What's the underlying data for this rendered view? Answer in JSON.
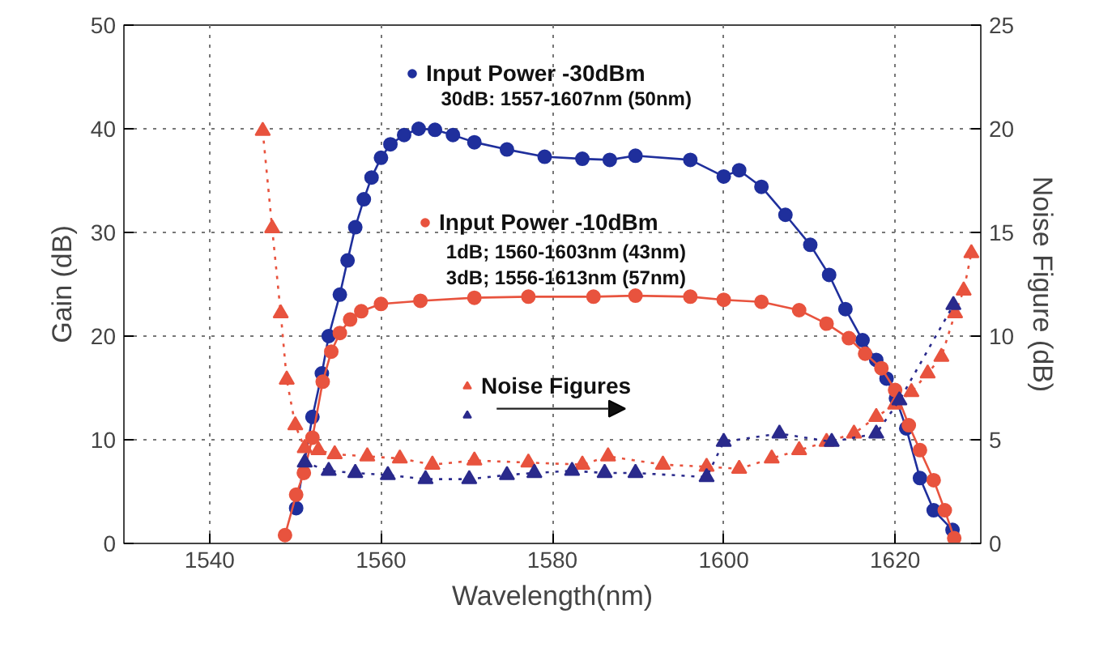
{
  "chart_data": {
    "type": "line",
    "xlabel": "Wavelength(nm)",
    "ylabel": "Gain (dB)",
    "y2label": "Noise Figure (dB)",
    "xlim": [
      1530,
      1630
    ],
    "xticks": [
      1540,
      1560,
      1580,
      1600,
      1620
    ],
    "ylim": [
      0,
      50
    ],
    "yticks": [
      0,
      10,
      20,
      30,
      40,
      50
    ],
    "y2lim": [
      0,
      25
    ],
    "y2ticks": [
      0,
      5,
      10,
      15,
      20,
      25
    ],
    "grid": true,
    "legend": "top",
    "annotations": [
      "30dB: 1557-1607nm (50nm)",
      "1dB; 1560-1603nm (43nm)",
      "3dB; 1556-1613nm (57nm)"
    ],
    "series": [
      {
        "name": "Input Power -30dBm",
        "color": "#1f2f9c",
        "marker": "circle",
        "line_style": "solid",
        "x": [
          1550.1,
          1552.0,
          1553.1,
          1553.9,
          1555.2,
          1556.1,
          1557.0,
          1558.0,
          1558.9,
          1560.0,
          1561.1,
          1562.7,
          1564.4,
          1566.3,
          1568.4,
          1570.9,
          1574.7,
          1579.1,
          1583.5,
          1586.7,
          1589.7,
          1596.1,
          1600.0,
          1601.8,
          1604.4,
          1607.2,
          1610.1,
          1612.3,
          1614.2,
          1616.2,
          1617.8,
          1619.0,
          1620.1,
          1621.3,
          1622.9,
          1624.5,
          1626.7
        ],
        "values": [
          3.4,
          12.2,
          16.4,
          20,
          24,
          27.3,
          30.5,
          33.2,
          35.3,
          37.2,
          38.5,
          39.4,
          40,
          39.9,
          39.4,
          38.7,
          38,
          37.3,
          37.1,
          37,
          37.4,
          37,
          35.4,
          36,
          34.4,
          31.7,
          28.8,
          25.9,
          22.6,
          19.6,
          17.7,
          15.9,
          14,
          11.1,
          6.3,
          3.2,
          1.3
        ]
      },
      {
        "name": "Input Power -10dBm",
        "color": "#e8533e",
        "marker": "circle",
        "line_style": "solid",
        "x": [
          1548.8,
          1550.1,
          1551.0,
          1552.0,
          1553.2,
          1554.2,
          1555.2,
          1556.4,
          1557.7,
          1560.0,
          1564.6,
          1570.9,
          1577.2,
          1584.8,
          1589.7,
          1596.1,
          1600.0,
          1604.4,
          1608.8,
          1612.0,
          1614.6,
          1616.5,
          1618.4,
          1620.0,
          1621.6,
          1622.9,
          1624.5,
          1625.8,
          1626.9
        ],
        "values": [
          0.8,
          4.7,
          6.8,
          10.2,
          15.6,
          18.5,
          20.3,
          21.6,
          22.4,
          23.1,
          23.4,
          23.7,
          23.8,
          23.8,
          23.9,
          23.8,
          23.5,
          23.3,
          22.5,
          21.2,
          19.8,
          18.3,
          16.9,
          14.8,
          11.4,
          9,
          6.1,
          3.2,
          0.5
        ]
      },
      {
        "name": "Noise Figures",
        "color": "#e8533e",
        "marker": "triangle",
        "line_style": "dotted",
        "axis": "y2",
        "x": [
          1546.2,
          1547.3,
          1548.3,
          1549.0,
          1550.0,
          1551.1,
          1552.7,
          1554.6,
          1558.4,
          1562.2,
          1566.0,
          1570.9,
          1577.2,
          1583.5,
          1586.5,
          1592.9,
          1598.0,
          1601.8,
          1605.6,
          1608.8,
          1612.0,
          1615.2,
          1617.8,
          1620.0,
          1621.9,
          1623.8,
          1625.4,
          1627.0,
          1628.0,
          1628.9
        ],
        "values": [
          19.9,
          15.2,
          11.1,
          7.9,
          5.7,
          4.6,
          4.5,
          4.3,
          4.2,
          4.1,
          3.8,
          4,
          3.9,
          3.8,
          4.2,
          3.8,
          3.7,
          3.6,
          4.1,
          4.5,
          4.9,
          5.3,
          6.1,
          6.7,
          7.3,
          8.2,
          9,
          11.1,
          12.2,
          14
        ]
      },
      {
        "color": "#2a2a8c",
        "marker": "triangle",
        "line_style": "dotted",
        "axis": "y2",
        "x": [
          1551.1,
          1553.9,
          1557.0,
          1560.8,
          1565.2,
          1570.3,
          1574.7,
          1577.9,
          1582.3,
          1586.1,
          1589.7,
          1598.0,
          1600.0,
          1606.5,
          1612.6,
          1617.8,
          1620.5,
          1626.8
        ],
        "values": [
          3.9,
          3.5,
          3.4,
          3.3,
          3.1,
          3.1,
          3.3,
          3.4,
          3.5,
          3.4,
          3.4,
          3.2,
          4.9,
          5.3,
          4.9,
          5.3,
          6.9,
          11.5
        ]
      }
    ]
  }
}
